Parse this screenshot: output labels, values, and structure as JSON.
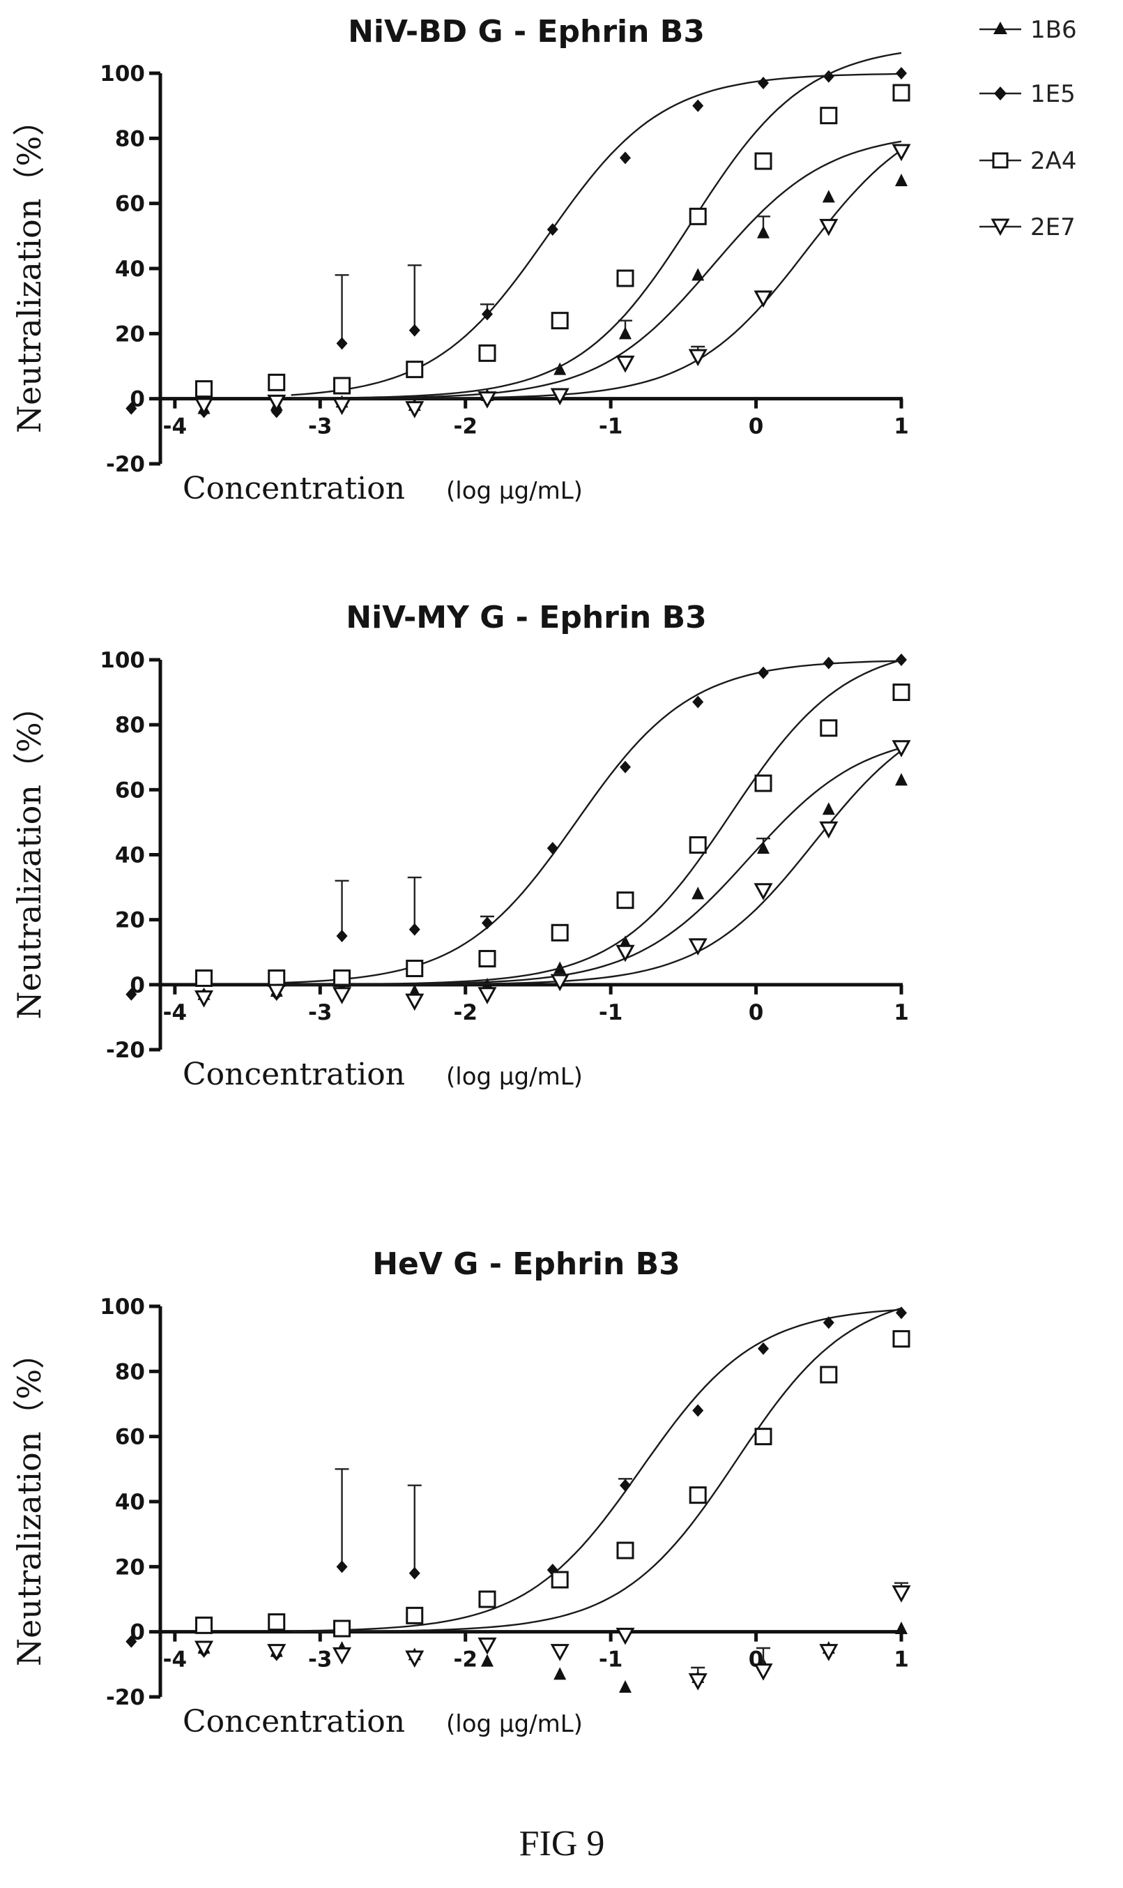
{
  "figure_caption": "FIG 9",
  "legend": [
    {
      "label": "1B6",
      "marker": "triangle-up",
      "color": "#111111"
    },
    {
      "label": "1E5",
      "marker": "diamond",
      "color": "#111111"
    },
    {
      "label": "2A4",
      "marker": "square-open",
      "color": "#111111"
    },
    {
      "label": "2E7",
      "marker": "triangle-down-open",
      "color": "#111111"
    }
  ],
  "chart_data": [
    {
      "type": "scatter",
      "title": "NiV-BD G - Ephrin B3",
      "ylabel": "Neutralization（%）",
      "xlabel": "Concentration",
      "xlabel_unit": "(log µg/mL)",
      "xlim": [
        -4.1,
        1.0
      ],
      "ylim": [
        -20,
        100
      ],
      "xticks": [
        -4,
        -3,
        -2,
        -1,
        0,
        1
      ],
      "xtick_labels": [
        "-4",
        "-3",
        "-2",
        "-1",
        "0",
        "1"
      ],
      "yticks": [
        -20,
        0,
        20,
        40,
        60,
        80,
        100
      ],
      "ytick_labels": [
        "-20",
        "0",
        "20",
        "40",
        "60",
        "80",
        "100"
      ],
      "grid": false,
      "legend_position": "right",
      "series": [
        {
          "name": "1B6",
          "marker": "triangle-up",
          "x": [
            -3.8,
            -3.3,
            -2.85,
            -2.35,
            -1.85,
            -1.35,
            -0.9,
            -0.4,
            0.05,
            0.5,
            1.0
          ],
          "y": [
            -3,
            -2,
            -1,
            -2,
            1,
            9,
            20,
            38,
            51,
            62,
            67
          ],
          "err": [
            0,
            0,
            0,
            0,
            0,
            0,
            4,
            0,
            5,
            0,
            0
          ]
        },
        {
          "name": "1E5",
          "marker": "diamond",
          "x": [
            -4.3,
            -3.8,
            -3.3,
            -2.85,
            -2.35,
            -1.85,
            -1.4,
            -0.9,
            -0.4,
            0.05,
            0.5,
            1.0
          ],
          "y": [
            -3,
            -4,
            -4,
            17,
            21,
            26,
            52,
            74,
            90,
            97,
            99,
            100
          ],
          "err": [
            0,
            0,
            0,
            21,
            20,
            3,
            0,
            0,
            0,
            0,
            0,
            0
          ]
        },
        {
          "name": "2A4",
          "marker": "square-open",
          "x": [
            -3.8,
            -3.3,
            -2.85,
            -2.35,
            -1.85,
            -1.35,
            -0.9,
            -0.4,
            0.05,
            0.5,
            1.0
          ],
          "y": [
            3,
            5,
            4,
            9,
            14,
            24,
            37,
            56,
            73,
            87,
            94
          ],
          "err": [
            0,
            0,
            0,
            0,
            0,
            0,
            0,
            0,
            0,
            0,
            0
          ]
        },
        {
          "name": "2E7",
          "marker": "triangle-down-open",
          "x": [
            -3.8,
            -3.3,
            -2.85,
            -2.35,
            -1.85,
            -1.35,
            -0.9,
            -0.4,
            0.05,
            0.5,
            1.0
          ],
          "y": [
            -2,
            -1,
            -2,
            -3,
            0,
            1,
            11,
            13,
            31,
            53,
            76
          ],
          "err": [
            0,
            0,
            0,
            0,
            0,
            0,
            0,
            3,
            0,
            0,
            0
          ]
        }
      ]
    },
    {
      "type": "scatter",
      "title": "NiV-MY G - Ephrin B3",
      "ylabel": "Neutralization（%）",
      "xlabel": "Concentration",
      "xlabel_unit": "(log µg/mL)",
      "xlim": [
        -4.1,
        1.0
      ],
      "ylim": [
        -20,
        100
      ],
      "xticks": [
        -4,
        -3,
        -2,
        -1,
        0,
        1
      ],
      "xtick_labels": [
        "-4",
        "-3",
        "-2",
        "-1",
        "0",
        "1"
      ],
      "yticks": [
        -20,
        0,
        20,
        40,
        60,
        80,
        100
      ],
      "ytick_labels": [
        "-20",
        "0",
        "20",
        "40",
        "60",
        "80",
        "100"
      ],
      "grid": false,
      "legend_position": "right",
      "series": [
        {
          "name": "1B6",
          "marker": "triangle-up",
          "x": [
            -3.8,
            -3.3,
            -2.85,
            -2.35,
            -1.85,
            -1.35,
            -0.9,
            -0.4,
            0.05,
            0.5,
            1.0
          ],
          "y": [
            -3,
            -2,
            -1,
            -2,
            0,
            5,
            13,
            28,
            42,
            54,
            63
          ],
          "err": [
            0,
            0,
            0,
            0,
            0,
            0,
            0,
            0,
            3,
            0,
            0
          ]
        },
        {
          "name": "1E5",
          "marker": "diamond",
          "x": [
            -4.3,
            -3.8,
            -3.3,
            -2.85,
            -2.35,
            -1.85,
            -1.4,
            -0.9,
            -0.4,
            0.05,
            0.5,
            1.0
          ],
          "y": [
            -3,
            -3,
            -3,
            15,
            17,
            19,
            42,
            67,
            87,
            96,
            99,
            100
          ],
          "err": [
            0,
            0,
            0,
            17,
            16,
            2,
            0,
            0,
            0,
            0,
            0,
            0
          ]
        },
        {
          "name": "2A4",
          "marker": "square-open",
          "x": [
            -3.8,
            -3.3,
            -2.85,
            -2.35,
            -1.85,
            -1.35,
            -0.9,
            -0.4,
            0.05,
            0.5,
            1.0
          ],
          "y": [
            2,
            2,
            2,
            5,
            8,
            16,
            26,
            43,
            62,
            79,
            90
          ],
          "err": [
            0,
            0,
            0,
            0,
            0,
            0,
            0,
            0,
            0,
            0,
            0
          ]
        },
        {
          "name": "2E7",
          "marker": "triangle-down-open",
          "x": [
            -3.8,
            -3.3,
            -2.85,
            -2.35,
            -1.85,
            -1.35,
            -0.9,
            -0.4,
            0.05,
            0.5,
            1.0
          ],
          "y": [
            -4,
            -2,
            -3,
            -5,
            -3,
            1,
            10,
            12,
            29,
            48,
            73
          ],
          "err": [
            0,
            0,
            0,
            0,
            0,
            0,
            0,
            2,
            0,
            0,
            0
          ]
        }
      ]
    },
    {
      "type": "scatter",
      "title": "HeV G - Ephrin B3",
      "ylabel": "Neutralization（%）",
      "xlabel": "Concentration",
      "xlabel_unit": "(log µg/mL)",
      "xlim": [
        -4.1,
        1.0
      ],
      "ylim": [
        -20,
        100
      ],
      "xticks": [
        -4,
        -3,
        -2,
        -1,
        0,
        1
      ],
      "xtick_labels": [
        "-4",
        "-3",
        "-2",
        "-1",
        "0",
        "1"
      ],
      "yticks": [
        -20,
        0,
        20,
        40,
        60,
        80,
        100
      ],
      "ytick_labels": [
        "-20",
        "0",
        "20",
        "40",
        "60",
        "80",
        "100"
      ],
      "grid": false,
      "legend_position": "right",
      "series": [
        {
          "name": "1B6",
          "marker": "triangle-up",
          "x": [
            -3.8,
            -3.3,
            -2.85,
            -2.35,
            -1.85,
            -1.35,
            -0.9,
            -0.4,
            0.05,
            0.5,
            1.0
          ],
          "y": [
            -5,
            -6,
            -5,
            -7,
            -9,
            -13,
            -17,
            -14,
            -10,
            -5,
            1
          ],
          "err": [
            0,
            0,
            0,
            0,
            0,
            0,
            0,
            0,
            0,
            0,
            0
          ]
        },
        {
          "name": "1E5",
          "marker": "diamond",
          "x": [
            -4.3,
            -3.8,
            -3.3,
            -2.85,
            -2.35,
            -1.85,
            -1.4,
            -0.9,
            -0.4,
            0.05,
            0.5,
            1.0
          ],
          "y": [
            -3,
            -6,
            -7,
            20,
            18,
            10,
            19,
            45,
            68,
            87,
            95,
            98
          ],
          "err": [
            0,
            0,
            0,
            30,
            27,
            0,
            0,
            2,
            0,
            0,
            0,
            0
          ]
        },
        {
          "name": "2A4",
          "marker": "square-open",
          "x": [
            -3.8,
            -3.3,
            -2.85,
            -2.35,
            -1.85,
            -1.35,
            -0.9,
            -0.4,
            0.05,
            0.5,
            1.0
          ],
          "y": [
            2,
            3,
            1,
            5,
            10,
            16,
            25,
            42,
            60,
            79,
            90
          ],
          "err": [
            0,
            0,
            0,
            0,
            0,
            0,
            0,
            0,
            0,
            0,
            0
          ]
        },
        {
          "name": "2E7",
          "marker": "triangle-down-open",
          "x": [
            -3.8,
            -3.3,
            -2.85,
            -2.35,
            -1.85,
            -1.35,
            -0.9,
            -0.4,
            0.05,
            0.5,
            1.0
          ],
          "y": [
            -5,
            -6,
            -7,
            -8,
            -4,
            -6,
            -1,
            -15,
            -12,
            -6,
            12
          ],
          "err": [
            0,
            0,
            0,
            0,
            0,
            0,
            0,
            4,
            7,
            0,
            3
          ]
        }
      ]
    }
  ]
}
